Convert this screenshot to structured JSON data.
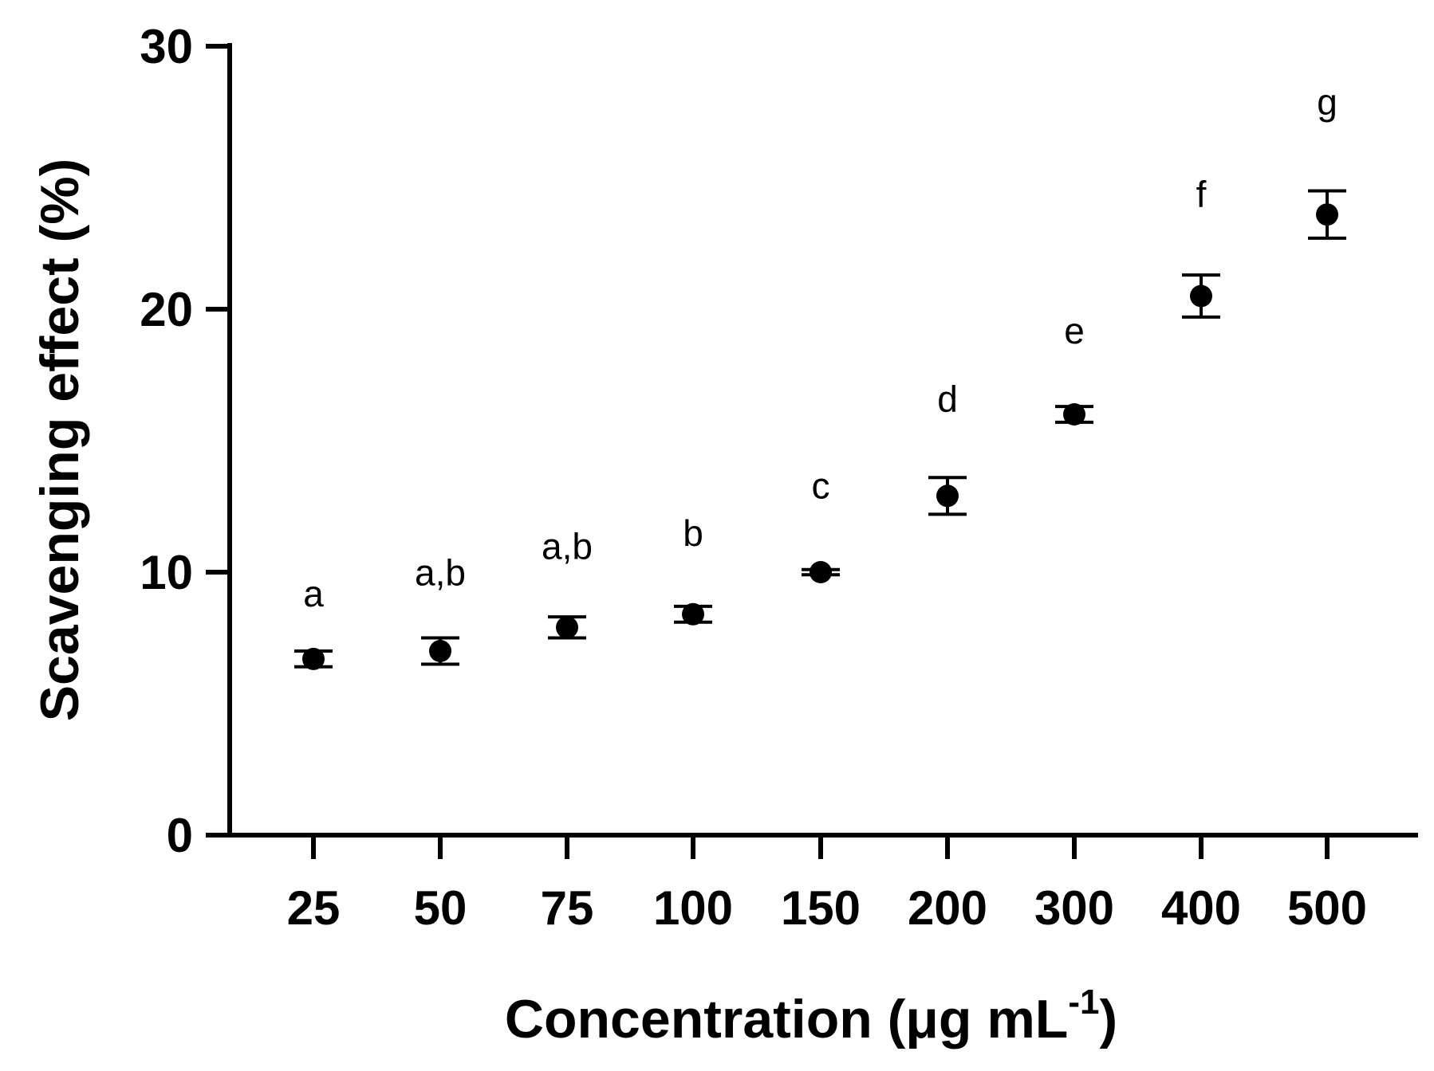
{
  "chart_data": {
    "type": "scatter",
    "title": "",
    "xlabel": "Concentration (μg mL",
    "xlabel_superscript": "-1",
    "xlabel_close": ")",
    "ylabel": "Scavenging effect (%)",
    "ylim": [
      0,
      30
    ],
    "yticks": [
      "0",
      "10",
      "20",
      "30"
    ],
    "ytick_values": [
      0,
      10,
      20,
      30
    ],
    "categories": [
      "25",
      "50",
      "75",
      "100",
      "150",
      "200",
      "300",
      "400",
      "500"
    ],
    "values": [
      6.7,
      7.0,
      7.9,
      8.4,
      10.0,
      12.9,
      16.0,
      20.5,
      23.6
    ],
    "errors": [
      0.3,
      0.5,
      0.4,
      0.3,
      0.1,
      0.7,
      0.3,
      0.8,
      0.9
    ],
    "letters": [
      "a",
      "a,b",
      "a,b",
      "b",
      "c",
      "d",
      "e",
      "f",
      "g"
    ],
    "letter_values": [
      8.7,
      9.5,
      10.5,
      11.0,
      12.8,
      16.1,
      18.7,
      23.9,
      27.4
    ],
    "grid": false,
    "color": "#000000"
  }
}
